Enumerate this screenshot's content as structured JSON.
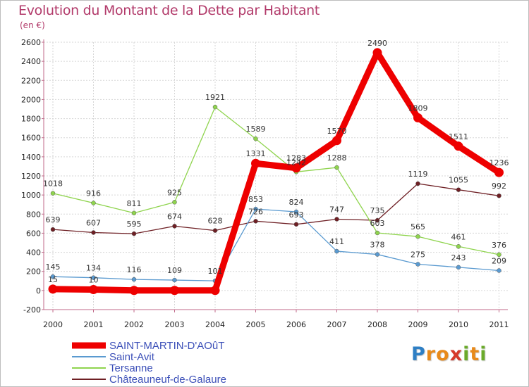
{
  "title": "Evolution du Montant de la Dette par Habitant",
  "subtitle": "(en €)",
  "brand": {
    "text": "Proxiti",
    "letters": [
      "P",
      "r",
      "o",
      "x",
      "i",
      "t",
      "i"
    ],
    "colors": [
      "#2e7fc4",
      "#e88a1a",
      "#e88a1a",
      "#d63a2a",
      "#6aaa2a",
      "#e88a1a",
      "#6aaa2a"
    ]
  },
  "chart_data": {
    "type": "line",
    "title": "Evolution du Montant de la Dette par Habitant",
    "subtitle": "(en €)",
    "xlabel": "",
    "ylabel": "",
    "categories": [
      "2000",
      "2001",
      "2002",
      "2003",
      "2004",
      "2005",
      "2006",
      "2007",
      "2008",
      "2009",
      "2010",
      "2011"
    ],
    "ylim": [
      -200,
      2600
    ],
    "yticks": [
      "-200",
      "0",
      "200",
      "400",
      "600",
      "800",
      "1000",
      "1200",
      "1400",
      "1600",
      "1800",
      "2000",
      "2200",
      "2400",
      "2600"
    ],
    "grid": true,
    "legend": "bottom-left",
    "series": [
      {
        "name": "SAINT-MARTIN-D'AOûT",
        "color": "#ee0000",
        "values": [
          15,
          10,
          1,
          1,
          1,
          1331,
          1283,
          1570,
          2490,
          1809,
          1511,
          1236
        ],
        "labels": [
          "15",
          "10",
          "",
          "",
          "",
          "1331",
          "1283",
          "1570",
          "2490",
          "1809",
          "1511",
          "1236"
        ]
      },
      {
        "name": "Saint-Avit",
        "color": "#5a9ad0",
        "values": [
          145,
          134,
          116,
          109,
          101,
          853,
          824,
          411,
          378,
          275,
          243,
          209
        ],
        "labels": [
          "145",
          "134",
          "116",
          "109",
          "101",
          "853",
          "824",
          "411",
          "378",
          "275",
          "243",
          "209"
        ]
      },
      {
        "name": "Tersanne",
        "color": "#8fd44e",
        "values": [
          1018,
          916,
          811,
          925,
          1921,
          1589,
          1242,
          1288,
          603,
          565,
          461,
          376
        ],
        "labels": [
          "1018",
          "916",
          "811",
          "925",
          "1921",
          "1589",
          "1242",
          "1288",
          "603",
          "565",
          "461",
          "376"
        ]
      },
      {
        "name": "Châteauneuf-de-Galaure",
        "color": "#6e1f24",
        "values": [
          639,
          607,
          595,
          674,
          628,
          726,
          693,
          747,
          735,
          1119,
          1055,
          992
        ],
        "labels": [
          "639",
          "607",
          "595",
          "674",
          "628",
          "726",
          "693",
          "747",
          "735",
          "1119",
          "1055",
          "992"
        ]
      }
    ]
  }
}
